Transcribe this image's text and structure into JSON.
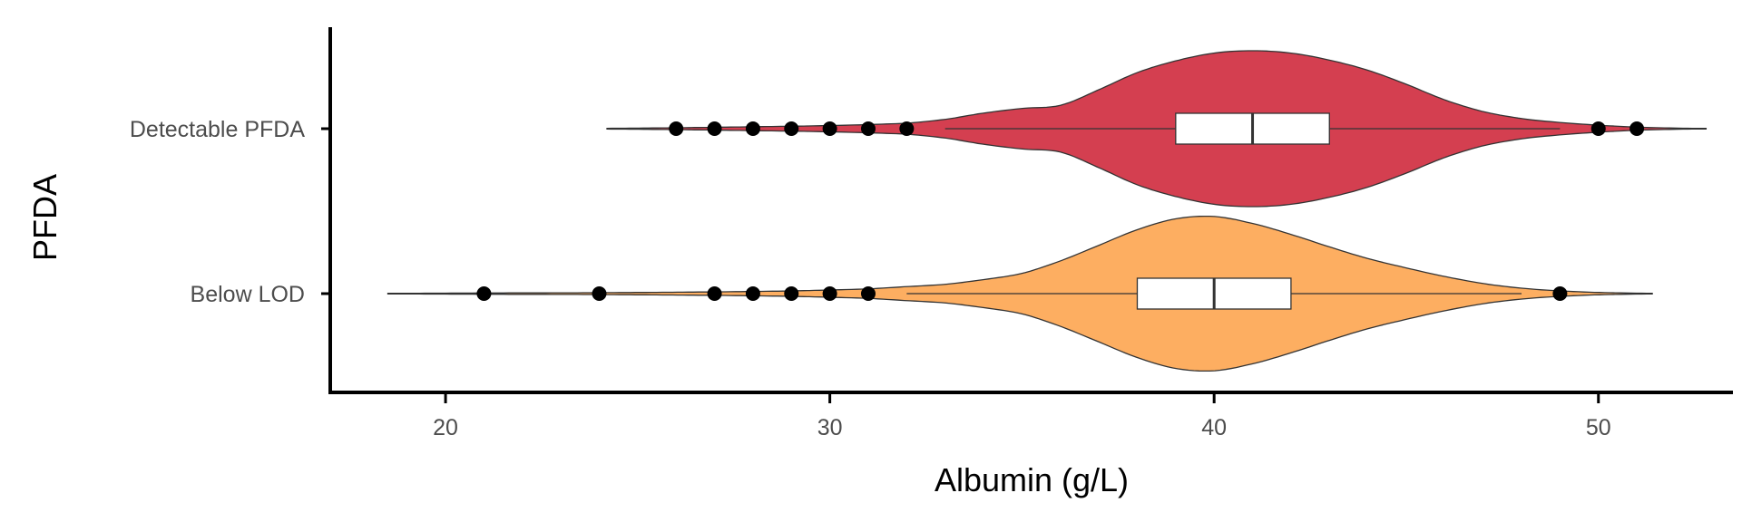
{
  "chart_data": {
    "type": "violin",
    "orientation": "horizontal",
    "xlabel": "Albumin (g/L)",
    "ylabel": "PFDA",
    "xlim": [
      17,
      53.5
    ],
    "xticks": [
      20,
      30,
      40,
      50
    ],
    "x_tick_labels": [
      "20",
      "30",
      "40",
      "50"
    ],
    "grid": false,
    "legend": "none",
    "series": [
      {
        "name": "Detectable PFDA",
        "color": "#d43f50",
        "range": [
          24.2,
          52.8
        ],
        "density": [
          [
            24.2,
            0.005
          ],
          [
            26,
            0.012
          ],
          [
            28,
            0.025
          ],
          [
            30,
            0.04
          ],
          [
            32,
            0.07
          ],
          [
            33,
            0.12
          ],
          [
            34,
            0.2
          ],
          [
            35,
            0.26
          ],
          [
            36,
            0.3
          ],
          [
            37,
            0.5
          ],
          [
            38,
            0.72
          ],
          [
            39,
            0.87
          ],
          [
            40,
            0.97
          ],
          [
            41,
            1.0
          ],
          [
            42,
            0.97
          ],
          [
            43,
            0.88
          ],
          [
            44,
            0.75
          ],
          [
            45,
            0.57
          ],
          [
            46,
            0.37
          ],
          [
            47,
            0.22
          ],
          [
            48,
            0.13
          ],
          [
            49,
            0.08
          ],
          [
            50,
            0.045
          ],
          [
            51,
            0.02
          ],
          [
            52,
            0.008
          ],
          [
            52.8,
            0.003
          ]
        ],
        "box": {
          "q1": 39,
          "median": 41,
          "q3": 43,
          "whisker_low": 33,
          "whisker_high": 49
        },
        "outliers": [
          26,
          27,
          28,
          29,
          30,
          31,
          32,
          50,
          51
        ]
      },
      {
        "name": "Below LOD",
        "color": "#fdae61",
        "range": [
          18.5,
          51.4
        ],
        "density": [
          [
            18.5,
            0.004
          ],
          [
            21,
            0.008
          ],
          [
            24,
            0.012
          ],
          [
            27,
            0.022
          ],
          [
            29,
            0.035
          ],
          [
            31,
            0.06
          ],
          [
            32,
            0.09
          ],
          [
            33,
            0.12
          ],
          [
            34,
            0.18
          ],
          [
            35,
            0.26
          ],
          [
            36,
            0.42
          ],
          [
            37,
            0.62
          ],
          [
            38,
            0.82
          ],
          [
            39,
            0.96
          ],
          [
            40,
            0.99
          ],
          [
            41,
            0.9
          ],
          [
            42,
            0.76
          ],
          [
            43,
            0.6
          ],
          [
            44,
            0.45
          ],
          [
            45,
            0.33
          ],
          [
            46,
            0.22
          ],
          [
            47,
            0.13
          ],
          [
            48,
            0.07
          ],
          [
            49,
            0.035
          ],
          [
            50,
            0.015
          ],
          [
            51.4,
            0.004
          ]
        ],
        "box": {
          "q1": 38,
          "median": 40,
          "q3": 42,
          "whisker_low": 32,
          "whisker_high": 48
        },
        "outliers": [
          21,
          24,
          27,
          28,
          29,
          30,
          31,
          49
        ]
      }
    ]
  }
}
